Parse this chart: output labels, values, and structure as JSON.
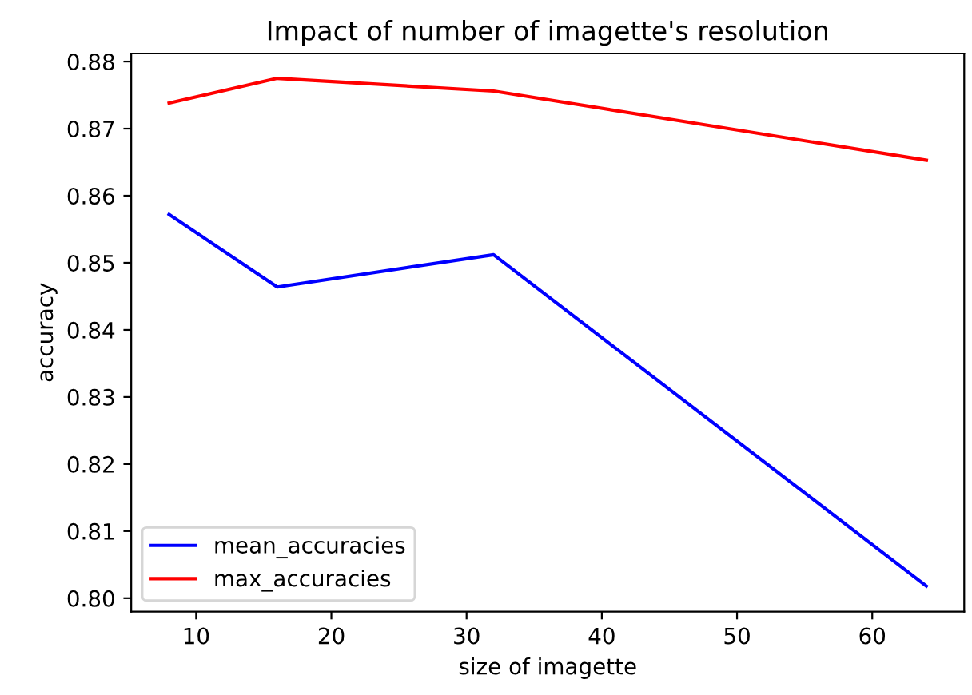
{
  "chart_data": {
    "type": "line",
    "title": "Impact of number of imagette's resolution",
    "xlabel": "size of imagette",
    "ylabel": "accuracy",
    "x": [
      8,
      16,
      32,
      64
    ],
    "series": [
      {
        "name": "mean_accuracies",
        "color": "#0000ff",
        "values": [
          0.8572,
          0.8464,
          0.8512,
          0.8018
        ]
      },
      {
        "name": "max_accuracies",
        "color": "#ff0000",
        "values": [
          0.8738,
          0.8775,
          0.8756,
          0.8653
        ]
      }
    ],
    "xlim": [
      5.2,
      66.8
    ],
    "xticks": [
      10,
      20,
      30,
      40,
      50,
      60
    ],
    "ylim": [
      0.798,
      0.8812
    ],
    "yticks": [
      {
        "value": 0.8,
        "label": "0.80"
      },
      {
        "value": 0.81,
        "label": "0.81"
      },
      {
        "value": 0.82,
        "label": "0.82"
      },
      {
        "value": 0.83,
        "label": "0.83"
      },
      {
        "value": 0.84,
        "label": "0.84"
      },
      {
        "value": 0.85,
        "label": "0.85"
      },
      {
        "value": 0.86,
        "label": "0.86"
      },
      {
        "value": 0.87,
        "label": "0.87"
      },
      {
        "value": 0.88,
        "label": "0.88"
      }
    ],
    "legend": "bottom left",
    "grid": false,
    "marker": "none",
    "line_style": "solid"
  }
}
